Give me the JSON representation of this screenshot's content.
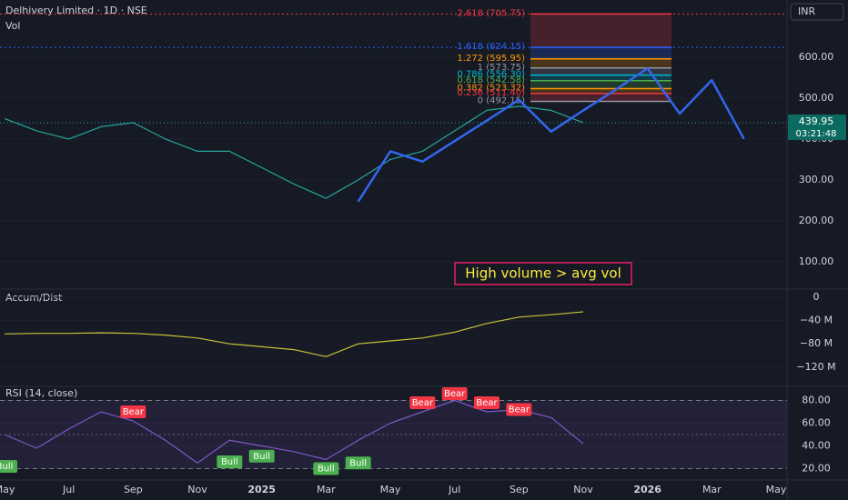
{
  "chart_data": [
    {
      "type": "line",
      "title": "Delhivery Limited · 1D · NSE",
      "subtitle": "Vol",
      "currency": "INR",
      "color": "#26a69a",
      "values": [
        450,
        420,
        400,
        430,
        440,
        400,
        370,
        370,
        330,
        290,
        255,
        300,
        350,
        370,
        420,
        470,
        480,
        470,
        440,
        null,
        null,
        null,
        null,
        null,
        null
      ],
      "projection": {
        "color": "#3366ee",
        "values": [
          null,
          null,
          null,
          null,
          null,
          null,
          null,
          null,
          null,
          null,
          null,
          247,
          370,
          345,
          395,
          445,
          496,
          418,
          470,
          520,
          573,
          462,
          544,
          400,
          null
        ]
      },
      "ylim": [
        33,
        740
      ],
      "yticks": [
        {
          "value": 600,
          "label": "600.00"
        },
        {
          "value": 500,
          "label": "500.00"
        },
        {
          "value": 400,
          "label": "400.00"
        },
        {
          "value": 300,
          "label": "300.00"
        },
        {
          "value": 200,
          "label": "200.00"
        },
        {
          "value": 100,
          "label": "100.00"
        }
      ],
      "last_price": 439.95,
      "countdown": "03:21:48",
      "levels": [
        {
          "label": "2.618 (705.75)",
          "value": 705.75,
          "color": "#f23645",
          "extend": true
        },
        {
          "label": "1.618 (624.15)",
          "value": 624.15,
          "color": "#2962ff",
          "extend": true
        },
        {
          "label": "1.272 (595.95)",
          "value": 595.95,
          "color": "#ff9800",
          "extend": false
        },
        {
          "label": "1 (573.75)",
          "value": 573.75,
          "color": "#9598a1",
          "extend": false
        },
        {
          "label": "0.786 (556.30)",
          "value": 556.3,
          "color": "#00bcd4",
          "extend": false
        },
        {
          "label": "0.618 (542.58)",
          "value": 542.58,
          "color": "#4caf50",
          "extend": false
        },
        {
          "label": "0.382 (523.32)",
          "value": 523.32,
          "color": "#ff9800",
          "extend": false
        },
        {
          "label": "0.236 (511.40)",
          "value": 511.4,
          "color": "#f23645",
          "extend": false
        },
        {
          "label": "0 (492.15)",
          "value": 492.15,
          "color": "#9598a1",
          "extend": false
        }
      ],
      "annotation": "High volume > avg vol"
    },
    {
      "type": "line",
      "title": "Accum/Dist",
      "color": "#c8c23a",
      "values": [
        -63000000,
        -62000000,
        -62000000,
        -61000000,
        -62000000,
        -65000000,
        -70000000,
        -80000000,
        -85000000,
        -90000000,
        -102000000,
        -80000000,
        -75000000,
        -70000000,
        -60000000,
        -45000000,
        -34000000,
        -30000000,
        -25000000,
        null,
        null,
        null,
        null,
        null,
        null
      ],
      "ylim": [
        -153000000,
        14000000
      ],
      "yticks": [
        0,
        {
          "value": -40000000,
          "label": "−40 M"
        },
        {
          "value": -80000000,
          "label": "−80 M"
        },
        {
          "value": -120000000,
          "label": "−120 M"
        }
      ]
    },
    {
      "type": "line",
      "title": "RSI (14, close)",
      "color": "#7e57c2",
      "categories": [
        "May",
        null,
        "Jul",
        null,
        "Sep",
        null,
        "Nov",
        null,
        "2025",
        null,
        "Mar",
        null,
        "May",
        null,
        "Jul",
        null,
        "Sep",
        null,
        "Nov",
        null,
        "2026",
        null,
        "Mar",
        null,
        "May"
      ],
      "values": [
        50,
        38,
        55,
        70,
        62,
        45,
        25,
        45,
        40,
        35,
        28,
        45,
        60,
        70,
        80,
        70,
        72,
        65,
        42,
        null,
        null,
        null,
        null,
        null,
        null
      ],
      "ylim": [
        10,
        90
      ],
      "yticks": [
        {
          "value": 80,
          "label": "80.00"
        },
        {
          "value": 60,
          "label": "60.00"
        },
        {
          "value": 40,
          "label": "40.00"
        },
        {
          "value": 20,
          "label": "20.00"
        }
      ],
      "band": [
        20,
        80
      ],
      "midline": 50,
      "signals": [
        {
          "label": "Bull",
          "color": "#4caf50",
          "values": [
            22,
            null,
            null,
            null,
            null,
            null,
            null,
            26,
            31,
            null,
            20,
            25,
            null,
            null,
            null,
            null,
            null,
            null,
            null,
            null,
            null,
            null,
            null,
            null,
            null
          ]
        },
        {
          "label": "Bear",
          "color": "#f23645",
          "values": [
            null,
            null,
            null,
            null,
            70,
            null,
            null,
            null,
            null,
            null,
            null,
            null,
            null,
            78,
            86,
            78,
            72,
            null,
            null,
            null,
            null,
            null,
            null,
            null,
            null
          ]
        }
      ]
    }
  ]
}
